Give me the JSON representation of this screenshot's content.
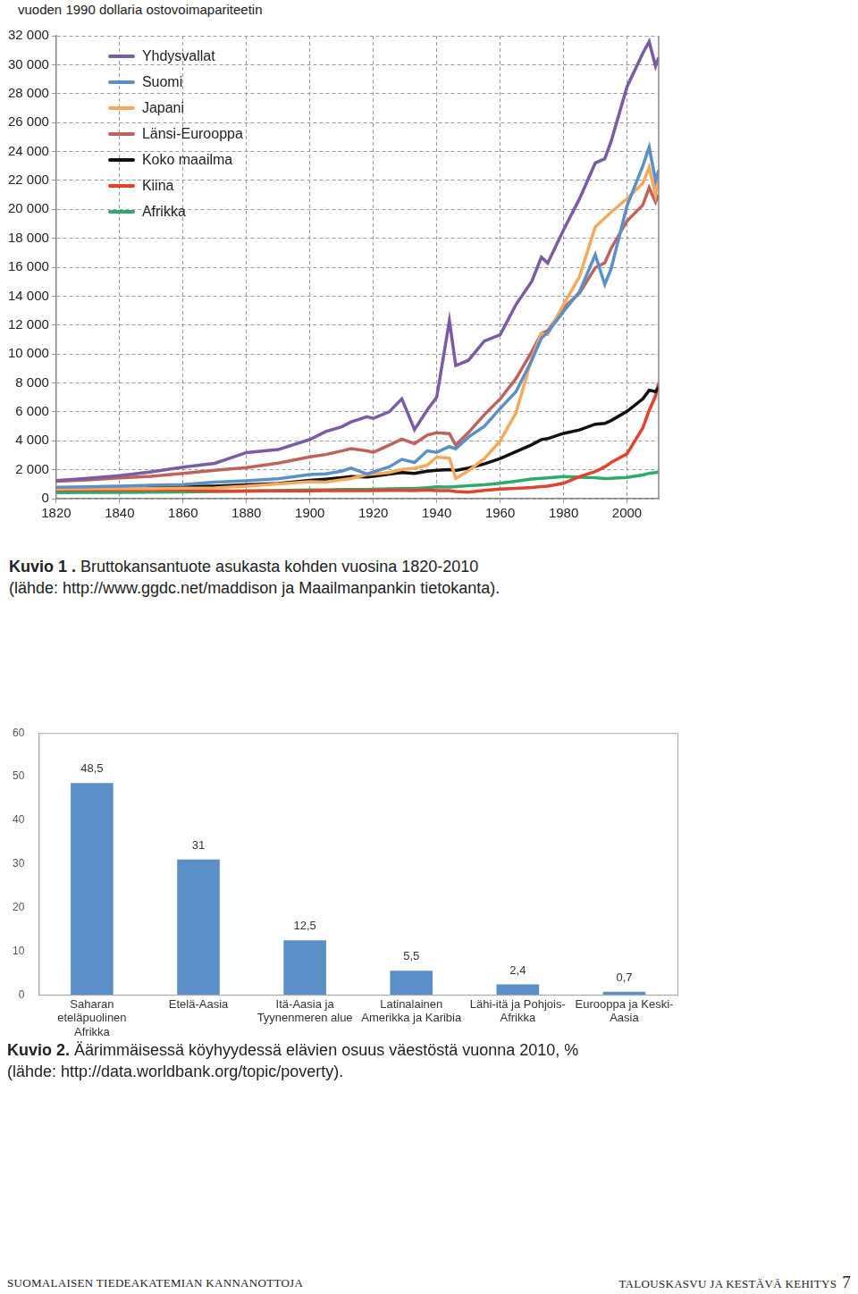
{
  "chart_data": [
    {
      "type": "line",
      "ylabel": "vuoden 1990 dollaria ostovoimapariteetin",
      "x": [
        1820,
        1830,
        1840,
        1850,
        1860,
        1870,
        1880,
        1890,
        1900,
        1905,
        1910,
        1913,
        1918,
        1920,
        1925,
        1929,
        1933,
        1937,
        1940,
        1944,
        1946,
        1950,
        1955,
        1960,
        1965,
        1970,
        1973,
        1975,
        1980,
        1985,
        1990,
        1993,
        1995,
        2000,
        2005,
        2007,
        2009,
        2010
      ],
      "series": [
        {
          "name": "Yhdysvallat",
          "color": "#7b5aa6",
          "values": [
            1257,
            1400,
            1588,
            1849,
            2178,
            2445,
            3184,
            3392,
            4091,
            4642,
            4964,
            5301,
            5659,
            5552,
            6000,
            6899,
            4777,
            6134,
            7010,
            12300,
            9200,
            9561,
            10897,
            11328,
            13419,
            15030,
            16689,
            16284,
            18577,
            20717,
            23201,
            23500,
            24700,
            28467,
            30800,
            31600,
            29900,
            30500
          ]
        },
        {
          "name": "Suomi",
          "color": "#5b8fc7",
          "values": [
            781,
            820,
            870,
            920,
            980,
            1140,
            1240,
            1380,
            1668,
            1720,
            1900,
            2111,
            1700,
            1846,
            2200,
            2717,
            2500,
            3300,
            3200,
            3600,
            3450,
            4253,
            5000,
            6230,
            7400,
            9577,
            11085,
            11500,
            12949,
            14300,
            16866,
            14800,
            15900,
            20235,
            23000,
            24300,
            22000,
            22700
          ]
        },
        {
          "name": "Japani",
          "color": "#f5a95c",
          "values": [
            669,
            680,
            690,
            700,
            720,
            737,
            863,
            1012,
            1180,
            1150,
            1304,
            1387,
            1668,
            1696,
            1800,
            2026,
            2100,
            2315,
            2874,
            2800,
            1400,
            1921,
            2771,
            3986,
            5934,
            9714,
            11434,
            11344,
            13428,
            15331,
            18789,
            19400,
            19800,
            20738,
            21800,
            22900,
            21000,
            22300
          ]
        },
        {
          "name": "Länsi-Eurooppa",
          "color": "#c0625c",
          "values": [
            1202,
            1300,
            1430,
            1550,
            1750,
            1960,
            2150,
            2450,
            2885,
            3050,
            3300,
            3457,
            3300,
            3200,
            3700,
            4111,
            3800,
            4400,
            4550,
            4500,
            3700,
            4569,
            5800,
            6896,
            8300,
            10169,
            11416,
            11600,
            13197,
            14200,
            15966,
            16300,
            17300,
            19200,
            20300,
            21500,
            20500,
            21000
          ]
        },
        {
          "name": "Koko maailma",
          "color": "#111111",
          "values": [
            666,
            700,
            750,
            800,
            830,
            870,
            950,
            1050,
            1262,
            1350,
            1450,
            1524,
            1500,
            1550,
            1700,
            1806,
            1750,
            1900,
            1958,
            2000,
            1950,
            2113,
            2400,
            2777,
            3250,
            3729,
            4085,
            4150,
            4512,
            4750,
            5150,
            5200,
            5400,
            6038,
            6900,
            7500,
            7400,
            7700
          ]
        },
        {
          "name": "Kiina",
          "color": "#e0442f",
          "values": [
            600,
            600,
            600,
            600,
            600,
            530,
            530,
            540,
            545,
            550,
            552,
            552,
            560,
            560,
            565,
            570,
            560,
            600,
            560,
            550,
            500,
            448,
            575,
            662,
            706,
            778,
            838,
            870,
            1061,
            1522,
            1871,
            2200,
            2500,
            3100,
            4900,
            6100,
            7100,
            8000
          ]
        },
        {
          "name": "Afrikka",
          "color": "#2eaa6b",
          "values": [
            420,
            430,
            440,
            450,
            470,
            500,
            520,
            550,
            600,
            610,
            630,
            637,
            640,
            650,
            680,
            700,
            700,
            760,
            813,
            800,
            830,
            889,
            960,
            1066,
            1200,
            1357,
            1410,
            1430,
            1536,
            1480,
            1444,
            1390,
            1400,
            1464,
            1640,
            1750,
            1800,
            1850
          ]
        }
      ],
      "xlim": [
        1820,
        2010
      ],
      "xticks": [
        1820,
        1840,
        1860,
        1880,
        1900,
        1920,
        1940,
        1960,
        1980,
        2000
      ],
      "ylim": [
        0,
        32000
      ],
      "yticks": [
        0,
        {
          "value": 2000,
          "label": "2 000"
        },
        {
          "value": 4000,
          "label": "4 000"
        },
        {
          "value": 6000,
          "label": "6 000"
        },
        {
          "value": 8000,
          "label": "8 000"
        },
        {
          "value": 10000,
          "label": "10 000"
        },
        {
          "value": 12000,
          "label": "12 000"
        },
        {
          "value": 14000,
          "label": "14 000"
        },
        {
          "value": 16000,
          "label": "16 000"
        },
        {
          "value": 18000,
          "label": "18 000"
        },
        {
          "value": 20000,
          "label": "20 000"
        },
        {
          "value": 22000,
          "label": "22 000"
        },
        {
          "value": 24000,
          "label": "24 000"
        },
        {
          "value": 26000,
          "label": "26 000"
        },
        {
          "value": 28000,
          "label": "28 000"
        },
        {
          "value": 30000,
          "label": "30 000"
        },
        {
          "value": 32000,
          "label": "32 000"
        }
      ],
      "grid": true,
      "legend": "top-left"
    },
    {
      "type": "bar",
      "categories": [
        [
          "Saharan",
          "eteläpuolinen",
          "Afrikka"
        ],
        [
          "Etelä-Aasia"
        ],
        [
          "Itä-Aasia ja",
          "Tyynenmeren alue"
        ],
        [
          "Latinalainen",
          "Amerikka ja Karibia"
        ],
        [
          "Lähi-itä ja Pohjois-",
          "Afrikka"
        ],
        [
          "Eurooppa ja Keski-",
          "Aasia"
        ]
      ],
      "values": [
        48.5,
        31,
        12.5,
        5.5,
        2.4,
        0.7
      ],
      "value_labels": [
        "48,5",
        "31",
        "12,5",
        "5,5",
        "2,4",
        "0,7"
      ],
      "color": "#5b8fc7",
      "ylim": [
        0,
        60
      ],
      "yticks": [
        0,
        10,
        20,
        30,
        40,
        50,
        60
      ],
      "grid": false,
      "data_labels": true
    }
  ],
  "figures": [
    {
      "label": "Kuvio 1 .",
      "text": "Bruttokansantuote asukasta kohden vuosina 1820-2010",
      "source": "(lähde: http://www.ggdc.net/maddison ja Maailmanpankin tietokanta)."
    },
    {
      "label": "Kuvio 2.",
      "text": "Äärimmäisessä köyhyydessä elävien osuus väestöstä vuonna 2010, %",
      "source": "(lähde: http://data.worldbank.org/topic/poverty)."
    }
  ],
  "footer": {
    "left": "SUOMALAISEN TIEDEAKATEMIAN KANNANOTTOJA",
    "right": "TALOUSKASVU JA KESTÄVÄ KEHITYS",
    "page": 7
  }
}
